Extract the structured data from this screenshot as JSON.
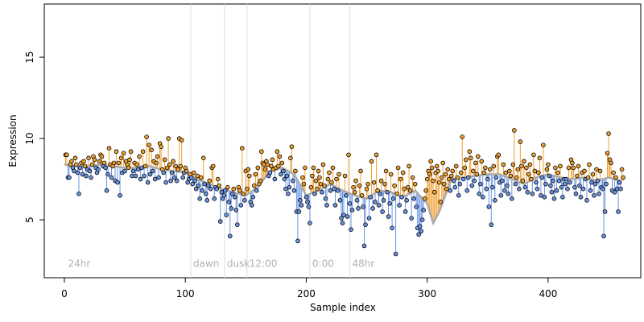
{
  "chart_data": {
    "type": "residual-scatter",
    "xlabel": "Sample index",
    "ylabel": "Expression",
    "xlim": [
      -16.6,
      476.6
    ],
    "ylim": [
      1.44,
      18.27
    ],
    "xticks": [
      0,
      100,
      200,
      300,
      400
    ],
    "yticks": [
      5,
      10,
      15
    ],
    "above_color": "#f0a030",
    "below_color": "#6a95e6",
    "fit_color": "#aaaaaa",
    "vline_color": "#dddddd",
    "vlines": [
      104.5,
      132.4,
      151,
      203,
      236
    ],
    "annotations": [
      {
        "text": "24hr",
        "x": 1
      },
      {
        "text": "dawn",
        "x": 104.5
      },
      {
        "text": "dusk",
        "x": 132.4
      },
      {
        "text": "12:00",
        "x": 151
      },
      {
        "text": "0:00",
        "x": 203
      },
      {
        "text": "48hr",
        "x": 236
      }
    ],
    "annotation_y": 2.1,
    "fit_x": [
      0,
      10,
      20,
      30,
      40,
      50,
      60,
      70,
      80,
      90,
      100,
      110,
      120,
      130,
      140,
      150,
      160,
      170,
      180,
      190,
      200,
      210,
      220,
      230,
      240,
      250,
      260,
      270,
      280,
      290,
      300,
      305,
      310,
      320,
      330,
      340,
      350,
      360,
      370,
      380,
      390,
      400,
      410,
      420,
      430,
      440,
      450,
      460
    ],
    "fit_values": [
      8.4,
      8.3,
      8.3,
      8.4,
      8.3,
      8.2,
      8.2,
      8.3,
      8.1,
      8.0,
      7.9,
      7.5,
      7.2,
      6.9,
      6.7,
      6.5,
      7.0,
      8.0,
      8.2,
      7.8,
      6.5,
      6.8,
      7.2,
      6.8,
      6.5,
      6.3,
      6.8,
      6.7,
      6.4,
      6.8,
      6.0,
      4.8,
      5.5,
      7.5,
      7.6,
      7.7,
      7.8,
      7.8,
      7.5,
      7.2,
      7.6,
      7.8,
      7.6,
      7.5,
      7.6,
      7.4,
      7.6,
      7.4
    ],
    "x": [
      1,
      2,
      3,
      4,
      5,
      6,
      7,
      8,
      9,
      10,
      11,
      12,
      13,
      14,
      15,
      16,
      17,
      18,
      19,
      20,
      21,
      22,
      23,
      24,
      25,
      26,
      27,
      28,
      29,
      30,
      31,
      32,
      33,
      34,
      35,
      36,
      37,
      38,
      39,
      40,
      41,
      42,
      43,
      44,
      45,
      46,
      47,
      48,
      49,
      50,
      51,
      52,
      53,
      54,
      55,
      56,
      57,
      58,
      59,
      60,
      61,
      62,
      63,
      64,
      65,
      66,
      67,
      68,
      69,
      70,
      71,
      72,
      73,
      74,
      75,
      76,
      77,
      78,
      79,
      80,
      81,
      82,
      83,
      84,
      85,
      86,
      87,
      88,
      89,
      90,
      91,
      92,
      93,
      94,
      95,
      96,
      97,
      98,
      99,
      100,
      101,
      102,
      103,
      104,
      105,
      106,
      107,
      108,
      109,
      110,
      111,
      112,
      113,
      114,
      115,
      116,
      117,
      118,
      119,
      120,
      121,
      122,
      123,
      124,
      125,
      126,
      127,
      128,
      129,
      130,
      131,
      132,
      133,
      134,
      135,
      136,
      137,
      138,
      139,
      140,
      141,
      142,
      143,
      144,
      145,
      146,
      147,
      148,
      149,
      150,
      151,
      152,
      153,
      154,
      155,
      156,
      157,
      158,
      159,
      160,
      161,
      162,
      163,
      164,
      165,
      166,
      167,
      168,
      169,
      170,
      171,
      172,
      173,
      174,
      175,
      176,
      177,
      178,
      179,
      180,
      181,
      182,
      183,
      184,
      185,
      186,
      187,
      188,
      189,
      190,
      191,
      192,
      193,
      194,
      195,
      196,
      197,
      198,
      199,
      200,
      201,
      202,
      203,
      204,
      205,
      206,
      207,
      208,
      209,
      210,
      211,
      212,
      213,
      214,
      215,
      216,
      217,
      218,
      219,
      220,
      221,
      222,
      223,
      224,
      225,
      226,
      227,
      228,
      229,
      230,
      231,
      232,
      233,
      234,
      235,
      236,
      237,
      238,
      239,
      240,
      241,
      242,
      243,
      244,
      245,
      246,
      247,
      248,
      249,
      250,
      251,
      252,
      253,
      254,
      255,
      256,
      257,
      258,
      259,
      260,
      261,
      262,
      263,
      264,
      265,
      266,
      267,
      268,
      269,
      270,
      271,
      272,
      273,
      274,
      275,
      276,
      277,
      278,
      279,
      280,
      281,
      282,
      283,
      284,
      285,
      286,
      287,
      288,
      289,
      290,
      291,
      292,
      293,
      294,
      295,
      296,
      297,
      298,
      299,
      300,
      301,
      302,
      303,
      304,
      305,
      306,
      307,
      308,
      309,
      310,
      311,
      312,
      313,
      314,
      315,
      316,
      317,
      318,
      319,
      320,
      321,
      322,
      323,
      324,
      325,
      326,
      327,
      328,
      329,
      330,
      331,
      332,
      333,
      334,
      335,
      336,
      337,
      338,
      339,
      340,
      341,
      342,
      343,
      344,
      345,
      346,
      347,
      348,
      349,
      350,
      351,
      352,
      353,
      354,
      355,
      356,
      357,
      358,
      359,
      360,
      361,
      362,
      363,
      364,
      365,
      366,
      367,
      368,
      369,
      370,
      371,
      372,
      373,
      374,
      375,
      376,
      377,
      378,
      379,
      380,
      381,
      382,
      383,
      384,
      385,
      386,
      387,
      388,
      389,
      390,
      391,
      392,
      393,
      394,
      395,
      396,
      397,
      398,
      399,
      400,
      401,
      402,
      403,
      404,
      405,
      406,
      407,
      408,
      409,
      410,
      411,
      412,
      413,
      414,
      415,
      416,
      417,
      418,
      419,
      420,
      421,
      422,
      423,
      424,
      425,
      426,
      427,
      428,
      429,
      430,
      431,
      432,
      433,
      434,
      435,
      436,
      437,
      438,
      439,
      440,
      441,
      442,
      443,
      444,
      445,
      446,
      447,
      448,
      449,
      450,
      451,
      452,
      453,
      454,
      455,
      456,
      457,
      458,
      459,
      460,
      461,
      462
    ],
    "values": [
      9.0,
      9.0,
      7.6,
      7.6,
      8.4,
      8.6,
      8.2,
      8.0,
      8.8,
      8.4,
      7.9,
      6.6,
      8.2,
      8.5,
      7.8,
      8.6,
      8.3,
      7.7,
      8.1,
      8.8,
      8.0,
      7.6,
      8.4,
      8.9,
      8.7,
      8.2,
      7.9,
      8.1,
      8.6,
      9.0,
      8.9,
      8.3,
      8.5,
      8.2,
      6.8,
      7.8,
      9.4,
      8.4,
      7.6,
      8.3,
      8.5,
      7.4,
      9.2,
      7.3,
      8.5,
      6.5,
      8.8,
      7.9,
      9.1,
      8.0,
      8.6,
      8.4,
      8.2,
      8.7,
      9.2,
      7.7,
      8.0,
      8.5,
      7.7,
      8.4,
      8.1,
      8.9,
      7.5,
      8.2,
      9.2,
      7.7,
      8.3,
      10.1,
      7.3,
      9.6,
      7.8,
      9.3,
      8.0,
      8.6,
      7.5,
      8.5,
      8.9,
      7.6,
      9.7,
      9.5,
      8.1,
      7.9,
      8.7,
      7.3,
      8.2,
      10.0,
      8.4,
      7.4,
      7.9,
      8.6,
      7.6,
      8.3,
      7.4,
      8.1,
      10.0,
      8.3,
      9.9,
      7.6,
      7.9,
      8.2,
      8.0,
      7.3,
      7.5,
      7.8,
      7.6,
      7.2,
      7.9,
      7.4,
      6.9,
      7.7,
      7.1,
      6.3,
      7.6,
      6.8,
      8.8,
      7.2,
      6.6,
      6.2,
      7.1,
      7.4,
      6.9,
      8.2,
      8.3,
      6.3,
      7.0,
      6.9,
      7.5,
      7.1,
      4.9,
      6.7,
      6.3,
      6.5,
      6.8,
      5.3,
      7.0,
      6.1,
      4.0,
      5.7,
      6.6,
      6.9,
      6.4,
      5.6,
      4.7,
      7.0,
      6.8,
      5.9,
      9.4,
      6.6,
      6.2,
      8.0,
      6.9,
      8.1,
      7.7,
      6.1,
      5.9,
      6.4,
      7.1,
      7.8,
      6.8,
      8.2,
      7.2,
      7.4,
      9.2,
      8.5,
      8.4,
      8.1,
      8.6,
      8.4,
      7.7,
      7.9,
      8.3,
      8.7,
      8.1,
      7.5,
      8.2,
      9.2,
      8.3,
      8.9,
      7.8,
      8.5,
      8.0,
      7.5,
      6.9,
      7.7,
      6.6,
      7.0,
      8.8,
      9.5,
      7.4,
      6.8,
      8.0,
      5.5,
      3.7,
      5.5,
      6.2,
      5.9,
      7.6,
      7.2,
      8.2,
      6.4,
      6.1,
      5.8,
      4.8,
      7.0,
      7.7,
      8.2,
      6.6,
      7.4,
      6.9,
      8.0,
      7.6,
      7.2,
      6.7,
      8.4,
      7.1,
      6.3,
      5.9,
      7.5,
      7.9,
      6.8,
      7.3,
      8.2,
      6.9,
      5.9,
      7.5,
      6.8,
      7.8,
      6.2,
      5.1,
      4.8,
      5.3,
      7.7,
      6.5,
      5.2,
      9.0,
      6.0,
      4.4,
      5.6,
      7.0,
      6.7,
      7.4,
      6.2,
      5.7,
      7.1,
      8.0,
      6.5,
      5.8,
      3.4,
      4.7,
      6.9,
      7.2,
      5.1,
      6.4,
      8.6,
      5.7,
      7.3,
      6.1,
      9.0,
      6.8,
      5.9,
      6.6,
      7.4,
      5.5,
      6.2,
      7.2,
      8.0,
      6.7,
      5.2,
      6.0,
      7.8,
      4.5,
      6.3,
      7.1,
      2.9,
      6.6,
      8.2,
      5.9,
      7.5,
      6.4,
      7.9,
      6.9,
      5.5,
      6.2,
      7.0,
      8.3,
      6.8,
      5.1,
      7.6,
      6.3,
      7.2,
      5.8,
      4.5,
      4.1,
      4.6,
      4.3,
      5.0,
      5.6,
      6.3,
      6.8,
      7.5,
      8.0,
      7.8,
      8.6,
      8.2,
      7.4,
      6.7,
      7.9,
      8.3,
      8.0,
      7.3,
      6.1,
      7.6,
      8.5,
      7.2,
      7.8,
      6.9,
      8.1,
      7.5,
      6.8,
      7.7,
      8.0,
      7.4,
      7.0,
      8.3,
      7.6,
      6.5,
      7.2,
      7.9,
      10.1,
      7.5,
      8.2,
      8.7,
      6.8,
      7.6,
      9.2,
      8.8,
      7.1,
      8.0,
      7.4,
      8.5,
      7.8,
      8.9,
      6.6,
      7.2,
      8.6,
      6.4,
      7.9,
      8.2,
      6.9,
      7.5,
      5.8,
      8.1,
      4.7,
      7.0,
      8.3,
      6.2,
      7.6,
      8.9,
      9.0,
      7.3,
      6.5,
      7.4,
      8.4,
      6.8,
      7.9,
      7.1,
      6.6,
      8.0,
      7.7,
      6.3,
      8.4,
      10.5,
      7.2,
      7.6,
      8.1,
      6.9,
      9.8,
      8.3,
      7.4,
      8.6,
      7.0,
      8.2,
      6.7,
      7.8,
      8.4,
      7.5,
      6.6,
      9.0,
      8.0,
      7.3,
      6.9,
      7.9,
      8.8,
      6.5,
      7.6,
      9.6,
      6.4,
      7.2,
      8.1,
      8.4,
      7.7,
      7.1,
      6.7,
      7.4,
      6.3,
      8.2,
      6.8,
      7.9,
      7.4,
      8.3,
      7.0,
      6.4,
      7.5,
      7.2,
      7.5,
      6.9,
      8.2,
      7.3,
      8.7,
      8.5,
      8.2,
      7.0,
      6.6,
      7.7,
      8.3,
      7.1,
      6.4,
      7.9,
      6.9,
      8.0,
      7.5,
      6.2,
      7.6,
      8.4,
      6.8,
      7.3,
      7.8,
      6.5,
      7.2,
      8.1,
      7.4,
      6.6,
      8.0,
      7.0,
      6.9,
      4.0,
      5.5,
      7.2,
      9.1,
      10.3,
      8.7,
      8.5,
      6.8,
      7.9,
      6.7,
      7.6,
      6.9,
      5.5,
      7.3,
      6.9,
      8.1,
      7.6
    ]
  }
}
